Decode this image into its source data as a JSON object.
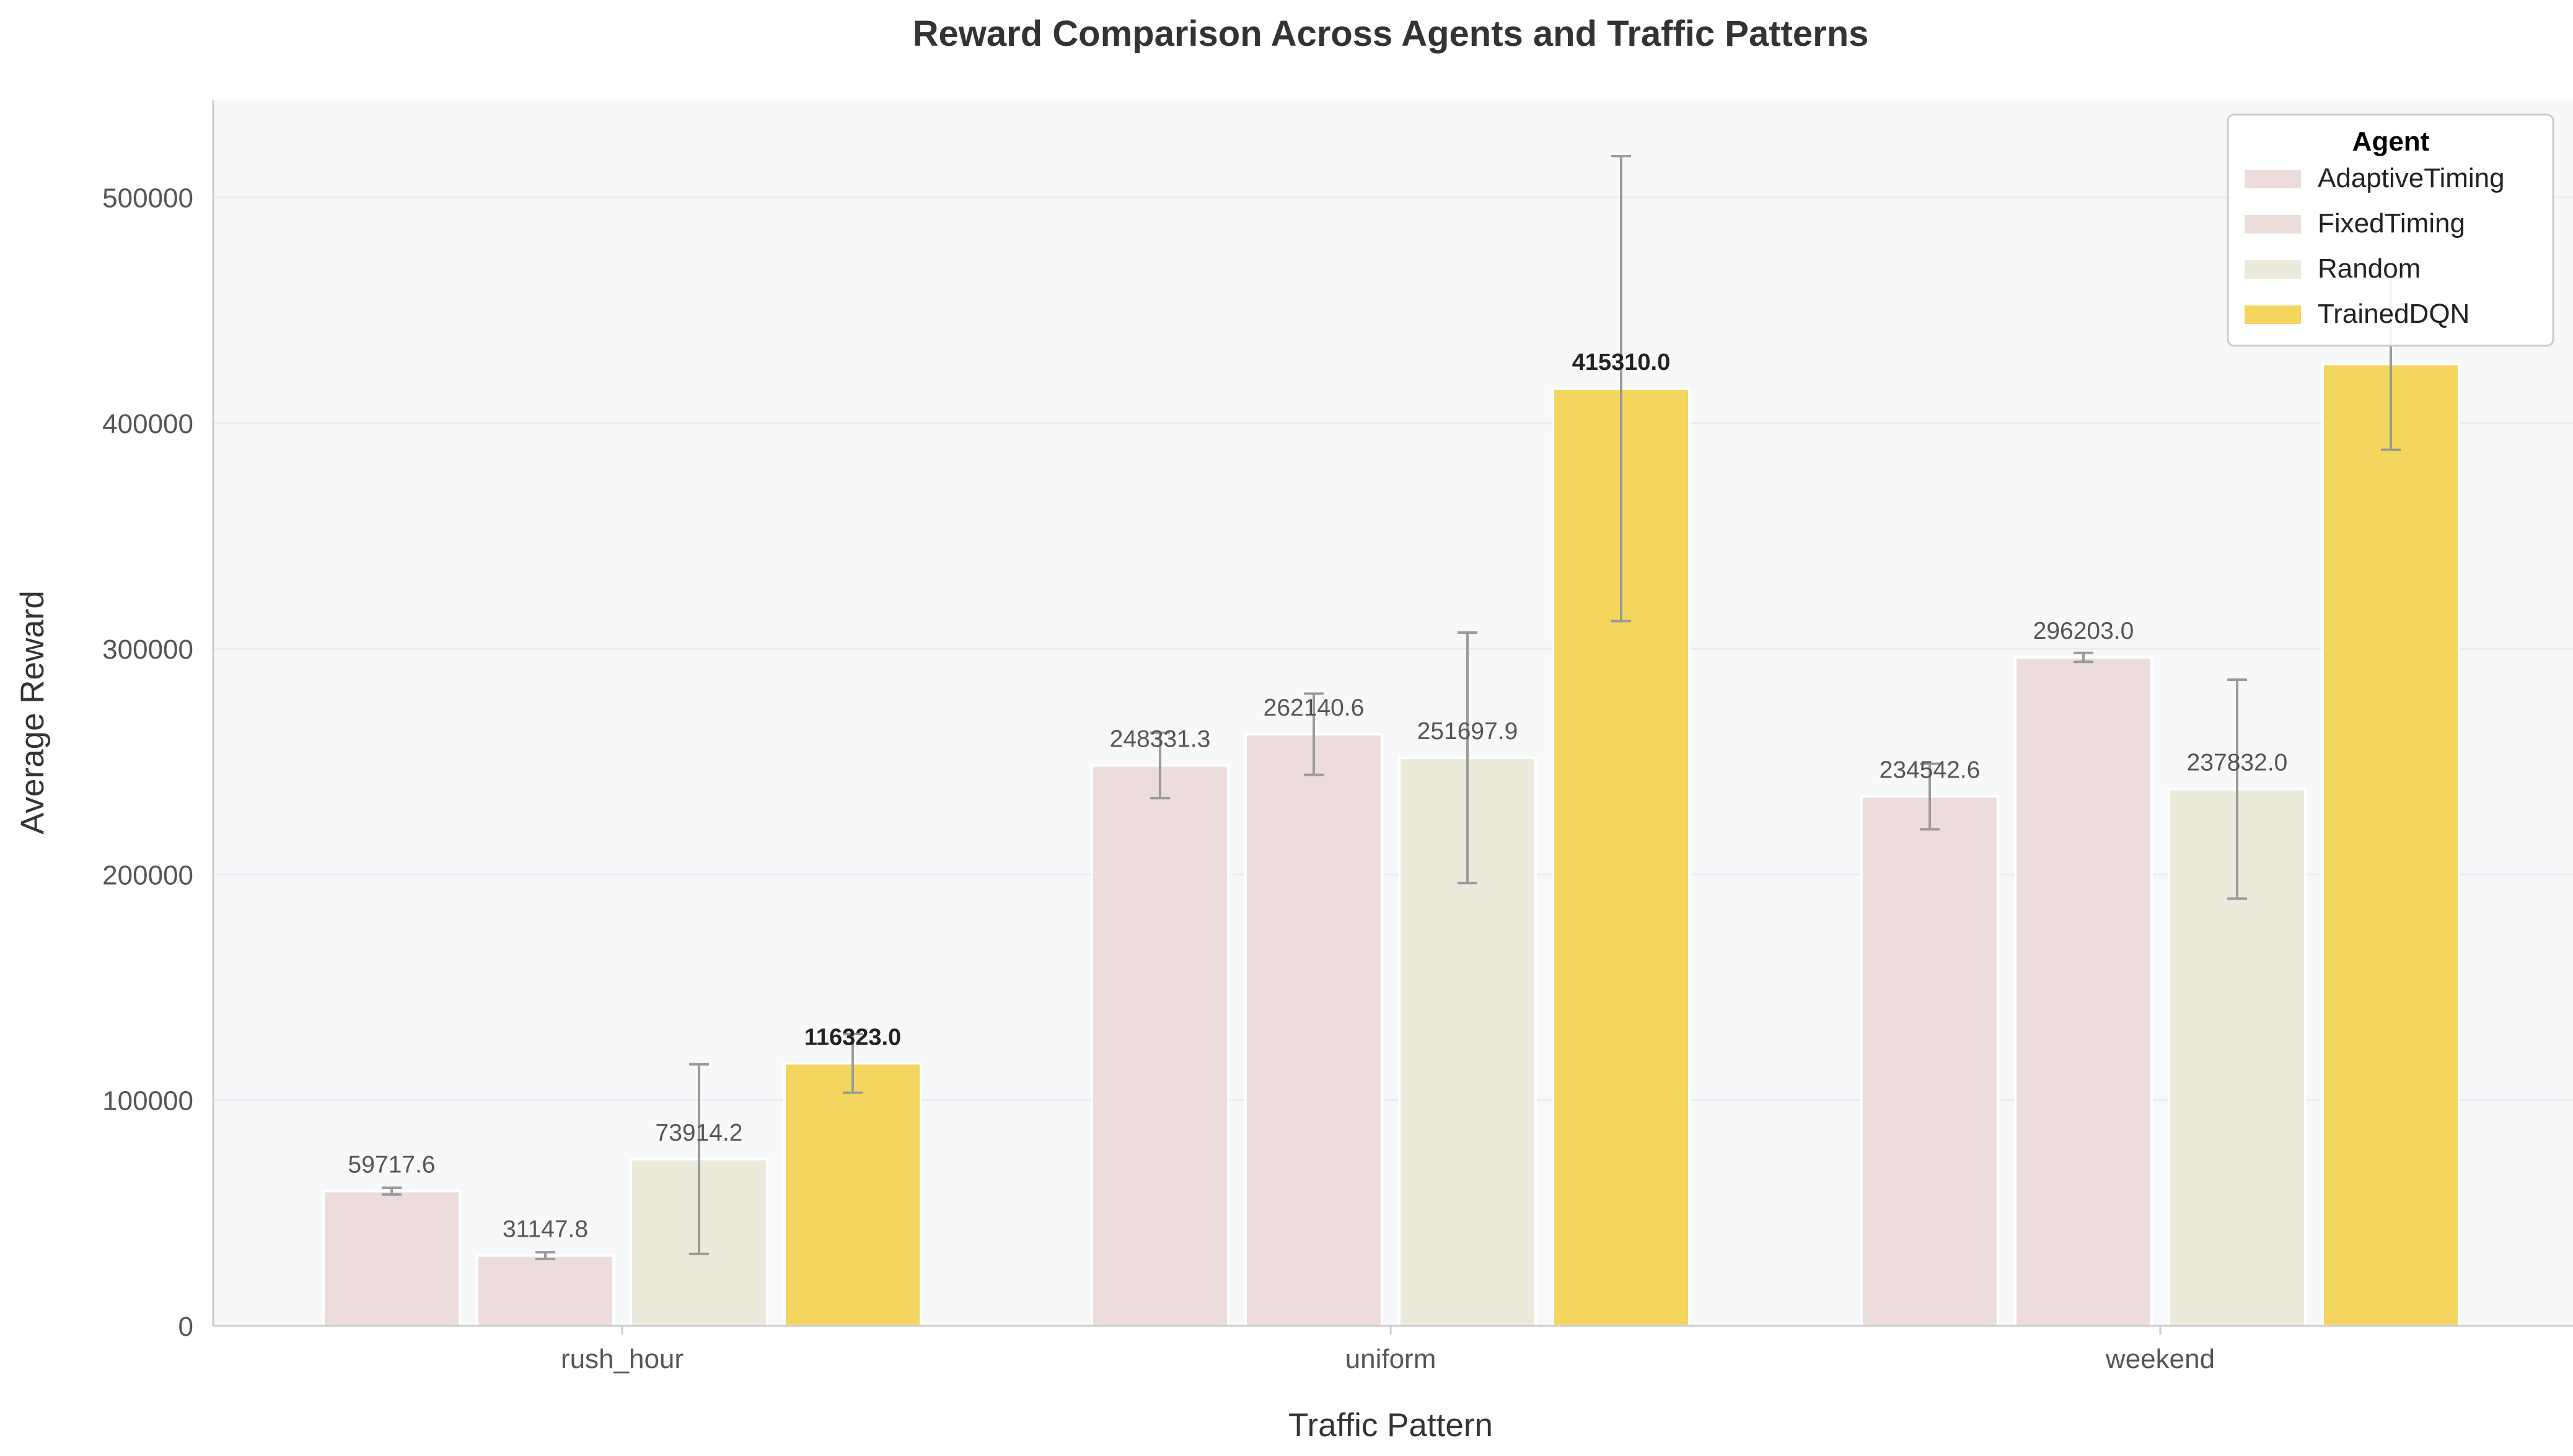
{
  "chart_data": {
    "type": "bar",
    "title": "Reward Comparison Across Agents and Traffic Patterns",
    "xlabel": "Traffic Pattern",
    "ylabel": "Average Reward",
    "categories": [
      "rush_hour",
      "uniform",
      "weekend"
    ],
    "ylim": [
      0,
      543000
    ],
    "yticks": [
      0,
      100000,
      200000,
      300000,
      400000,
      500000
    ],
    "ytick_labels": [
      "0",
      "100000",
      "200000",
      "300000",
      "400000",
      "500000"
    ],
    "grid": true,
    "legend": {
      "title": "Agent",
      "placement": "top-right"
    },
    "series": [
      {
        "name": "AdaptiveTiming",
        "color": "#ecdcdc",
        "values": [
          59717.6,
          248331.3,
          234542.6
        ],
        "errors": [
          1500,
          14500,
          14500
        ],
        "labels": [
          "59717.6",
          "248331.3",
          "234542.6"
        ]
      },
      {
        "name": "FixedTiming",
        "color": "#ecdcdc",
        "values": [
          31147.8,
          262140.6,
          296203.0
        ],
        "errors": [
          1500,
          18000,
          2000
        ],
        "labels": [
          "31147.8",
          "262140.6",
          "296203.0"
        ]
      },
      {
        "name": "Random",
        "color": "#ebeadb",
        "values": [
          73914.2,
          251697.9,
          237832.0
        ],
        "errors": [
          42000,
          55500,
          48500
        ],
        "labels": [
          "73914.2",
          "251697.9",
          "237832.0"
        ]
      },
      {
        "name": "TrainedDQN",
        "color": "#f4d55e",
        "values": [
          116323.0,
          415310.0,
          426200.0
        ],
        "errors": [
          13000,
          103000,
          38000
        ],
        "labels": [
          "116323.0",
          "415310.0",
          ""
        ]
      }
    ],
    "colors": {
      "plot_background": "#f7f8fa",
      "grid": "#ebecef",
      "error_bar": "#9a9a9a",
      "label_text": "#555555",
      "highlight_text": "#222222"
    }
  }
}
